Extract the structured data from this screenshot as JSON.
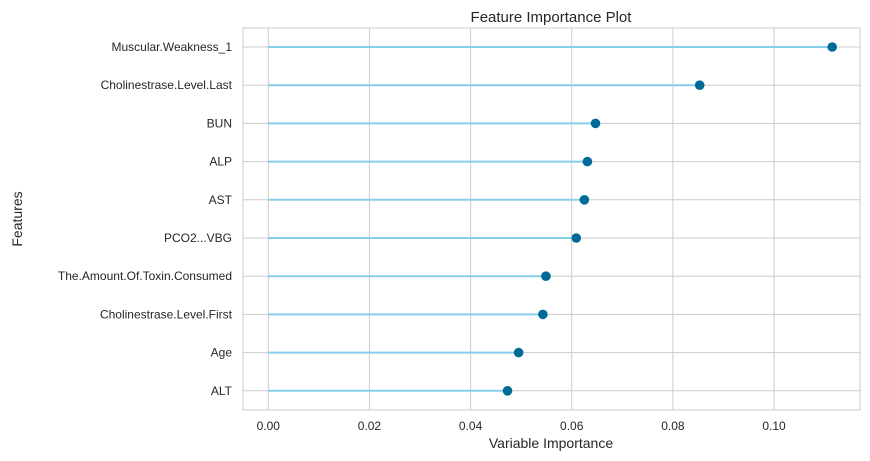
{
  "chart_data": {
    "type": "lollipop",
    "title": "Feature Importance Plot",
    "xlabel": "Variable Importance",
    "ylabel": "Features",
    "xlim": [
      -0.005,
      0.117
    ],
    "xticks": [
      0.0,
      0.02,
      0.04,
      0.06,
      0.08,
      0.1
    ],
    "xtick_labels": [
      "0.00",
      "0.02",
      "0.04",
      "0.06",
      "0.08",
      "0.10"
    ],
    "grid": true,
    "categories": [
      "Muscular.Weakness_1",
      "Cholinestrase.Level.Last",
      "BUN",
      "ALP",
      "AST",
      "PCO2...VBG",
      "The.Amount.Of.Toxin.Consumed",
      "Cholinestrase.Level.First",
      "Age",
      "ALT"
    ],
    "values": [
      0.1115,
      0.0853,
      0.0647,
      0.0631,
      0.0625,
      0.0609,
      0.0549,
      0.0543,
      0.0495,
      0.0473
    ],
    "colors": {
      "stem": "#87ceeb",
      "marker": "#006b96",
      "grid": "#cccccc",
      "frame": "#cccccc"
    }
  }
}
